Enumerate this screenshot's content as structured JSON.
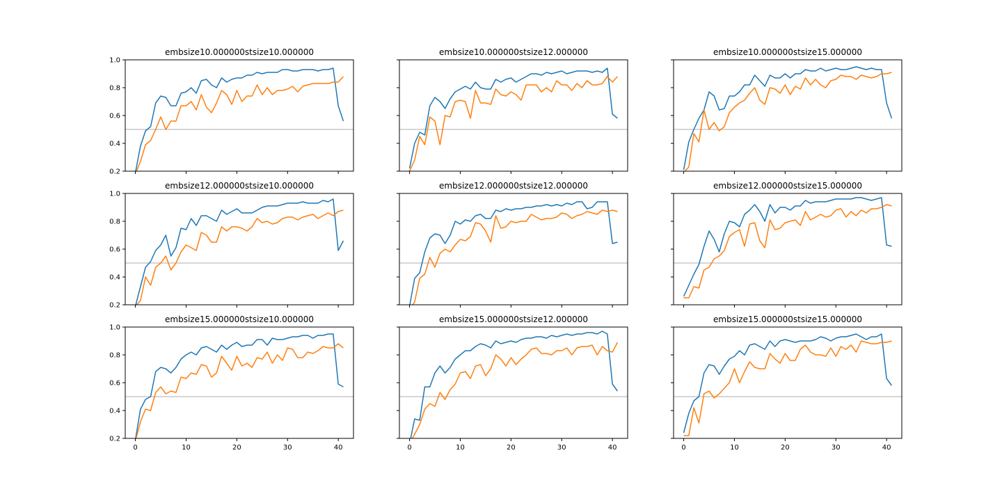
{
  "chart_data": [
    {
      "type": "line",
      "title": "embsize10.000000stsize10.000000",
      "xlim": [
        -2,
        43
      ],
      "ylim": [
        0.2,
        1.0
      ],
      "xticks": [
        0,
        10,
        20,
        30,
        40
      ],
      "yticks": [
        0.2,
        0.4,
        0.6,
        0.8,
        1.0
      ],
      "reference_line": 0.5,
      "series": [
        {
          "color": "#1f77b4",
          "values": [
            0.19,
            0.38,
            0.49,
            0.52,
            0.69,
            0.74,
            0.73,
            0.67,
            0.67,
            0.76,
            0.77,
            0.8,
            0.76,
            0.85,
            0.86,
            0.82,
            0.8,
            0.87,
            0.84,
            0.86,
            0.87,
            0.87,
            0.89,
            0.89,
            0.91,
            0.9,
            0.91,
            0.91,
            0.91,
            0.93,
            0.93,
            0.92,
            0.92,
            0.93,
            0.93,
            0.93,
            0.92,
            0.93,
            0.93,
            0.94,
            0.67,
            0.56
          ]
        },
        {
          "color": "#ff7f0e",
          "values": [
            0.18,
            0.27,
            0.39,
            0.42,
            0.5,
            0.59,
            0.5,
            0.56,
            0.56,
            0.67,
            0.67,
            0.7,
            0.64,
            0.75,
            0.66,
            0.62,
            0.69,
            0.78,
            0.75,
            0.68,
            0.78,
            0.7,
            0.74,
            0.74,
            0.82,
            0.75,
            0.8,
            0.75,
            0.78,
            0.78,
            0.79,
            0.81,
            0.77,
            0.81,
            0.82,
            0.83,
            0.83,
            0.83,
            0.83,
            0.84,
            0.84,
            0.88
          ]
        }
      ]
    },
    {
      "type": "line",
      "title": "embsize10.000000stsize12.000000",
      "xlim": [
        -2,
        43
      ],
      "ylim": [
        0.2,
        1.0
      ],
      "xticks": [
        0,
        10,
        20,
        30,
        40
      ],
      "yticks": [
        0.2,
        0.4,
        0.6,
        0.8,
        1.0
      ],
      "reference_line": 0.5,
      "series": [
        {
          "color": "#1f77b4",
          "values": [
            0.22,
            0.4,
            0.48,
            0.46,
            0.67,
            0.73,
            0.7,
            0.65,
            0.72,
            0.77,
            0.79,
            0.81,
            0.79,
            0.84,
            0.8,
            0.79,
            0.79,
            0.86,
            0.84,
            0.86,
            0.87,
            0.84,
            0.86,
            0.88,
            0.9,
            0.9,
            0.89,
            0.91,
            0.9,
            0.91,
            0.92,
            0.9,
            0.91,
            0.92,
            0.92,
            0.92,
            0.91,
            0.92,
            0.91,
            0.94,
            0.61,
            0.58
          ]
        },
        {
          "color": "#ff7f0e",
          "values": [
            0.2,
            0.28,
            0.45,
            0.39,
            0.59,
            0.56,
            0.39,
            0.6,
            0.59,
            0.7,
            0.71,
            0.7,
            0.58,
            0.78,
            0.69,
            0.69,
            0.68,
            0.79,
            0.75,
            0.74,
            0.77,
            0.75,
            0.71,
            0.82,
            0.82,
            0.82,
            0.77,
            0.8,
            0.77,
            0.85,
            0.82,
            0.82,
            0.78,
            0.83,
            0.8,
            0.85,
            0.82,
            0.82,
            0.83,
            0.88,
            0.84,
            0.88
          ]
        }
      ]
    },
    {
      "type": "line",
      "title": "embsize10.000000stsize15.000000",
      "xlim": [
        -2,
        43
      ],
      "ylim": [
        0.2,
        1.0
      ],
      "xticks": [
        0,
        10,
        20,
        30,
        40
      ],
      "yticks": [
        0.2,
        0.4,
        0.6,
        0.8,
        1.0
      ],
      "reference_line": 0.5,
      "series": [
        {
          "color": "#1f77b4",
          "values": [
            0.21,
            0.41,
            0.5,
            0.58,
            0.64,
            0.77,
            0.74,
            0.64,
            0.65,
            0.74,
            0.74,
            0.77,
            0.82,
            0.82,
            0.89,
            0.85,
            0.81,
            0.89,
            0.87,
            0.87,
            0.9,
            0.87,
            0.9,
            0.9,
            0.93,
            0.92,
            0.92,
            0.94,
            0.92,
            0.93,
            0.94,
            0.93,
            0.93,
            0.94,
            0.95,
            0.94,
            0.93,
            0.94,
            0.93,
            0.93,
            0.69,
            0.58
          ]
        },
        {
          "color": "#ff7f0e",
          "values": [
            0.19,
            0.23,
            0.47,
            0.41,
            0.64,
            0.5,
            0.55,
            0.49,
            0.52,
            0.62,
            0.66,
            0.69,
            0.71,
            0.76,
            0.8,
            0.71,
            0.68,
            0.8,
            0.79,
            0.76,
            0.82,
            0.75,
            0.81,
            0.79,
            0.87,
            0.82,
            0.86,
            0.82,
            0.8,
            0.85,
            0.86,
            0.89,
            0.88,
            0.88,
            0.86,
            0.89,
            0.88,
            0.87,
            0.88,
            0.9,
            0.9,
            0.91
          ]
        }
      ]
    },
    {
      "type": "line",
      "title": "embsize12.000000stsize10.000000",
      "xlim": [
        -2,
        43
      ],
      "ylim": [
        0.2,
        1.0
      ],
      "xticks": [
        0,
        10,
        20,
        30,
        40
      ],
      "yticks": [
        0.2,
        0.4,
        0.6,
        0.8,
        1.0
      ],
      "reference_line": 0.5,
      "series": [
        {
          "color": "#1f77b4",
          "values": [
            0.19,
            0.33,
            0.47,
            0.51,
            0.59,
            0.63,
            0.7,
            0.55,
            0.61,
            0.75,
            0.74,
            0.82,
            0.77,
            0.84,
            0.84,
            0.82,
            0.8,
            0.88,
            0.85,
            0.87,
            0.89,
            0.86,
            0.86,
            0.86,
            0.88,
            0.9,
            0.91,
            0.91,
            0.91,
            0.92,
            0.93,
            0.93,
            0.93,
            0.94,
            0.93,
            0.93,
            0.93,
            0.95,
            0.94,
            0.96,
            0.59,
            0.66
          ]
        },
        {
          "color": "#ff7f0e",
          "values": [
            0.19,
            0.23,
            0.4,
            0.34,
            0.47,
            0.5,
            0.55,
            0.45,
            0.5,
            0.58,
            0.63,
            0.61,
            0.59,
            0.72,
            0.7,
            0.65,
            0.65,
            0.76,
            0.73,
            0.76,
            0.76,
            0.75,
            0.73,
            0.76,
            0.82,
            0.79,
            0.8,
            0.78,
            0.79,
            0.82,
            0.83,
            0.83,
            0.81,
            0.83,
            0.84,
            0.85,
            0.82,
            0.84,
            0.86,
            0.84,
            0.87,
            0.88
          ]
        }
      ]
    },
    {
      "type": "line",
      "title": "embsize12.000000stsize12.000000",
      "xlim": [
        -2,
        43
      ],
      "ylim": [
        0.2,
        1.0
      ],
      "xticks": [
        0,
        10,
        20,
        30,
        40
      ],
      "yticks": [
        0.2,
        0.4,
        0.6,
        0.8,
        1.0
      ],
      "reference_line": 0.5,
      "series": [
        {
          "color": "#1f77b4",
          "values": [
            0.19,
            0.39,
            0.43,
            0.58,
            0.68,
            0.71,
            0.7,
            0.64,
            0.7,
            0.8,
            0.78,
            0.81,
            0.8,
            0.84,
            0.85,
            0.82,
            0.82,
            0.88,
            0.87,
            0.89,
            0.88,
            0.89,
            0.89,
            0.9,
            0.9,
            0.91,
            0.91,
            0.92,
            0.91,
            0.92,
            0.91,
            0.93,
            0.92,
            0.94,
            0.94,
            0.89,
            0.9,
            0.94,
            0.94,
            0.94,
            0.64,
            0.65
          ]
        },
        {
          "color": "#ff7f0e",
          "values": [
            0.17,
            0.22,
            0.39,
            0.42,
            0.54,
            0.47,
            0.57,
            0.6,
            0.58,
            0.63,
            0.67,
            0.66,
            0.69,
            0.79,
            0.78,
            0.73,
            0.65,
            0.84,
            0.75,
            0.76,
            0.8,
            0.79,
            0.8,
            0.8,
            0.85,
            0.83,
            0.81,
            0.82,
            0.82,
            0.83,
            0.86,
            0.85,
            0.82,
            0.84,
            0.85,
            0.87,
            0.86,
            0.85,
            0.88,
            0.87,
            0.88,
            0.87
          ]
        }
      ]
    },
    {
      "type": "line",
      "title": "embsize12.000000stsize15.000000",
      "xlim": [
        -2,
        43
      ],
      "ylim": [
        0.2,
        1.0
      ],
      "xticks": [
        0,
        10,
        20,
        30,
        40
      ],
      "yticks": [
        0.2,
        0.4,
        0.6,
        0.8,
        1.0
      ],
      "reference_line": 0.5,
      "series": [
        {
          "color": "#1f77b4",
          "values": [
            0.26,
            0.34,
            0.42,
            0.49,
            0.62,
            0.73,
            0.67,
            0.58,
            0.71,
            0.8,
            0.79,
            0.76,
            0.85,
            0.88,
            0.92,
            0.87,
            0.8,
            0.92,
            0.86,
            0.9,
            0.9,
            0.88,
            0.91,
            0.91,
            0.95,
            0.93,
            0.94,
            0.94,
            0.94,
            0.95,
            0.96,
            0.96,
            0.96,
            0.96,
            0.97,
            0.97,
            0.96,
            0.95,
            0.96,
            0.97,
            0.63,
            0.62
          ]
        },
        {
          "color": "#ff7f0e",
          "values": [
            0.25,
            0.25,
            0.33,
            0.32,
            0.45,
            0.47,
            0.53,
            0.55,
            0.59,
            0.69,
            0.72,
            0.74,
            0.62,
            0.78,
            0.79,
            0.66,
            0.61,
            0.81,
            0.74,
            0.75,
            0.79,
            0.8,
            0.81,
            0.77,
            0.87,
            0.81,
            0.83,
            0.85,
            0.83,
            0.84,
            0.88,
            0.89,
            0.83,
            0.87,
            0.84,
            0.88,
            0.86,
            0.89,
            0.89,
            0.9,
            0.92,
            0.91
          ]
        }
      ]
    },
    {
      "type": "line",
      "title": "embsize15.000000stsize10.000000",
      "xlim": [
        -2,
        43
      ],
      "ylim": [
        0.2,
        1.0
      ],
      "xticks": [
        0,
        10,
        20,
        30,
        40
      ],
      "yticks": [
        0.2,
        0.4,
        0.6,
        0.8,
        1.0
      ],
      "reference_line": 0.5,
      "series": [
        {
          "color": "#1f77b4",
          "values": [
            0.19,
            0.41,
            0.48,
            0.5,
            0.68,
            0.71,
            0.7,
            0.67,
            0.71,
            0.77,
            0.8,
            0.82,
            0.8,
            0.85,
            0.86,
            0.84,
            0.82,
            0.87,
            0.84,
            0.87,
            0.89,
            0.86,
            0.87,
            0.87,
            0.91,
            0.91,
            0.87,
            0.92,
            0.91,
            0.91,
            0.92,
            0.93,
            0.93,
            0.94,
            0.94,
            0.92,
            0.94,
            0.94,
            0.95,
            0.95,
            0.59,
            0.57
          ]
        },
        {
          "color": "#ff7f0e",
          "values": [
            0.18,
            0.32,
            0.41,
            0.4,
            0.53,
            0.57,
            0.52,
            0.54,
            0.53,
            0.64,
            0.63,
            0.67,
            0.66,
            0.73,
            0.72,
            0.64,
            0.67,
            0.79,
            0.74,
            0.69,
            0.79,
            0.72,
            0.74,
            0.71,
            0.78,
            0.77,
            0.82,
            0.74,
            0.8,
            0.76,
            0.85,
            0.84,
            0.78,
            0.78,
            0.82,
            0.81,
            0.83,
            0.86,
            0.85,
            0.85,
            0.88,
            0.85
          ]
        }
      ]
    },
    {
      "type": "line",
      "title": "embsize15.000000stsize12.000000",
      "xlim": [
        -2,
        43
      ],
      "ylim": [
        0.2,
        1.0
      ],
      "xticks": [
        0,
        10,
        20,
        30,
        40
      ],
      "yticks": [
        0.2,
        0.4,
        0.6,
        0.8,
        1.0
      ],
      "reference_line": 0.5,
      "series": [
        {
          "color": "#1f77b4",
          "values": [
            0.16,
            0.34,
            0.33,
            0.57,
            0.57,
            0.67,
            0.72,
            0.67,
            0.71,
            0.77,
            0.8,
            0.83,
            0.83,
            0.86,
            0.88,
            0.87,
            0.85,
            0.9,
            0.88,
            0.89,
            0.9,
            0.89,
            0.91,
            0.92,
            0.92,
            0.93,
            0.93,
            0.92,
            0.94,
            0.93,
            0.94,
            0.95,
            0.94,
            0.95,
            0.95,
            0.96,
            0.96,
            0.95,
            0.97,
            0.95,
            0.59,
            0.54
          ]
        },
        {
          "color": "#ff7f0e",
          "values": [
            0.16,
            0.23,
            0.3,
            0.41,
            0.45,
            0.43,
            0.53,
            0.48,
            0.55,
            0.59,
            0.67,
            0.68,
            0.63,
            0.72,
            0.73,
            0.65,
            0.7,
            0.8,
            0.77,
            0.72,
            0.78,
            0.73,
            0.77,
            0.8,
            0.84,
            0.85,
            0.81,
            0.81,
            0.8,
            0.83,
            0.83,
            0.85,
            0.8,
            0.85,
            0.86,
            0.86,
            0.87,
            0.8,
            0.86,
            0.83,
            0.82,
            0.89
          ]
        }
      ]
    },
    {
      "type": "line",
      "title": "embsize15.000000stsize15.000000",
      "xlim": [
        -2,
        43
      ],
      "ylim": [
        0.2,
        1.0
      ],
      "xticks": [
        0,
        10,
        20,
        30,
        40
      ],
      "yticks": [
        0.2,
        0.4,
        0.6,
        0.8,
        1.0
      ],
      "reference_line": 0.5,
      "series": [
        {
          "color": "#1f77b4",
          "values": [
            0.24,
            0.38,
            0.47,
            0.5,
            0.67,
            0.73,
            0.72,
            0.66,
            0.72,
            0.77,
            0.79,
            0.83,
            0.8,
            0.87,
            0.88,
            0.86,
            0.84,
            0.9,
            0.86,
            0.9,
            0.91,
            0.9,
            0.89,
            0.9,
            0.9,
            0.9,
            0.91,
            0.93,
            0.92,
            0.9,
            0.92,
            0.93,
            0.93,
            0.94,
            0.95,
            0.93,
            0.91,
            0.93,
            0.93,
            0.95,
            0.63,
            0.58
          ]
        },
        {
          "color": "#ff7f0e",
          "values": [
            0.22,
            0.22,
            0.42,
            0.31,
            0.52,
            0.54,
            0.49,
            0.52,
            0.56,
            0.6,
            0.7,
            0.6,
            0.68,
            0.75,
            0.71,
            0.7,
            0.7,
            0.81,
            0.77,
            0.74,
            0.81,
            0.76,
            0.76,
            0.84,
            0.87,
            0.82,
            0.8,
            0.8,
            0.79,
            0.85,
            0.79,
            0.86,
            0.84,
            0.87,
            0.82,
            0.9,
            0.89,
            0.88,
            0.88,
            0.89,
            0.89,
            0.9
          ]
        }
      ]
    }
  ]
}
